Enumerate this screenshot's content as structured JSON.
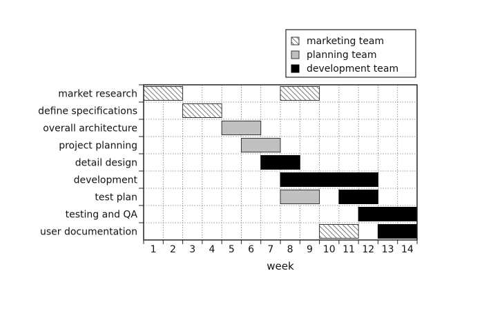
{
  "chart_data": {
    "type": "gantt",
    "title": "",
    "xlabel": "week",
    "ylabel": "",
    "xlim": [
      1,
      15
    ],
    "x_ticks": [
      1,
      2,
      3,
      4,
      5,
      6,
      7,
      8,
      9,
      10,
      11,
      12,
      13,
      14
    ],
    "grid": true,
    "legend_position": "top-right",
    "teams": [
      {
        "key": "marketing",
        "name": "marketing team",
        "fill": "hatched",
        "color": "#ffffff",
        "stroke": "#333333"
      },
      {
        "key": "planning",
        "name": "planning team",
        "fill": "solid",
        "color": "#c0c0c0",
        "stroke": "#333333"
      },
      {
        "key": "development",
        "name": "development team",
        "fill": "solid",
        "color": "#000000",
        "stroke": "#000000"
      }
    ],
    "tasks": [
      {
        "label": "market research",
        "bars": [
          {
            "team": "marketing",
            "start": 1,
            "end": 3
          },
          {
            "team": "marketing",
            "start": 8,
            "end": 10
          }
        ]
      },
      {
        "label": "define specifications",
        "bars": [
          {
            "team": "marketing",
            "start": 3,
            "end": 5
          }
        ]
      },
      {
        "label": "overall architecture",
        "bars": [
          {
            "team": "planning",
            "start": 5,
            "end": 7
          }
        ]
      },
      {
        "label": "project planning",
        "bars": [
          {
            "team": "planning",
            "start": 6,
            "end": 8
          }
        ]
      },
      {
        "label": "detail design",
        "bars": [
          {
            "team": "development",
            "start": 7,
            "end": 9
          }
        ]
      },
      {
        "label": "development",
        "bars": [
          {
            "team": "development",
            "start": 8,
            "end": 13
          }
        ]
      },
      {
        "label": "test plan",
        "bars": [
          {
            "team": "planning",
            "start": 8,
            "end": 10
          },
          {
            "team": "development",
            "start": 11,
            "end": 13
          }
        ]
      },
      {
        "label": "testing and QA",
        "bars": [
          {
            "team": "development",
            "start": 12,
            "end": 15
          }
        ]
      },
      {
        "label": "user documentation",
        "bars": [
          {
            "team": "marketing",
            "start": 10,
            "end": 12
          },
          {
            "team": "development",
            "start": 13,
            "end": 15
          }
        ]
      }
    ]
  }
}
